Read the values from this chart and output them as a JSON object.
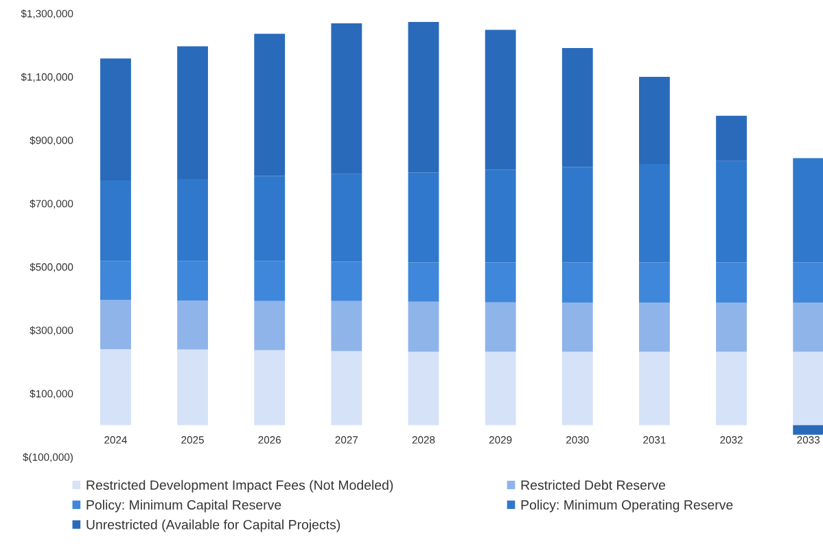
{
  "chart_data": {
    "type": "bar",
    "stacked": true,
    "categories": [
      "2024",
      "2025",
      "2026",
      "2027",
      "2028",
      "2029",
      "2030",
      "2031",
      "2032",
      "2033"
    ],
    "series": [
      {
        "name": "Restricted Development Impact Fees (Not Modeled)",
        "color": "#d6e2f8",
        "values": [
          240000,
          239000,
          237000,
          234000,
          232000,
          232000,
          232000,
          232000,
          232000,
          232000
        ]
      },
      {
        "name": "Restricted Debt Reserve",
        "color": "#8fb4ea",
        "values": [
          156000,
          155000,
          155000,
          158000,
          158000,
          156000,
          155000,
          155000,
          155000,
          155000
        ]
      },
      {
        "name": "Policy: Minimum Capital Reserve",
        "color": "#3f87da",
        "values": [
          123000,
          125000,
          127000,
          124000,
          124000,
          126000,
          127000,
          127000,
          127000,
          127000
        ]
      },
      {
        "name": "Policy: Minimum Operating Reserve",
        "color": "#3078cb",
        "values": [
          254000,
          258000,
          268000,
          277000,
          284000,
          293000,
          301000,
          311000,
          320000,
          329000
        ]
      },
      {
        "name": "Unrestricted (Available for Capital Projects)",
        "color": "#2a6abb",
        "values": [
          385000,
          419000,
          449000,
          476000,
          475000,
          441000,
          376000,
          275000,
          143000,
          -30000
        ]
      }
    ],
    "ylim": [
      -100000,
      1300000
    ],
    "yticks": [
      {
        "value": -100000,
        "label": "$(100,000)"
      },
      {
        "value": 100000,
        "label": "$100,000"
      },
      {
        "value": 300000,
        "label": "$300,000"
      },
      {
        "value": 500000,
        "label": "$500,000"
      },
      {
        "value": 700000,
        "label": "$700,000"
      },
      {
        "value": 900000,
        "label": "$900,000"
      },
      {
        "value": 1100000,
        "label": "$1,100,000"
      },
      {
        "value": 1300000,
        "label": "$1,300,000"
      }
    ],
    "grid": false,
    "legend": "bottom"
  }
}
